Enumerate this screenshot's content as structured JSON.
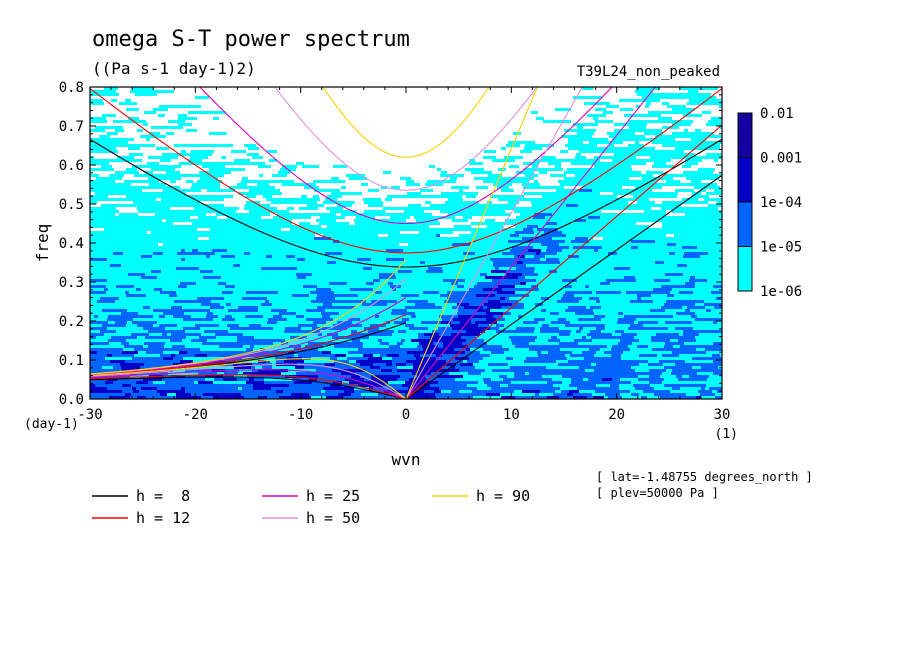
{
  "chart_data": {
    "type": "heatmap",
    "title": "omega S-T power spectrum",
    "subtitle": "((Pa s-1 day-1)2)",
    "experiment": "T39L24_non_peaked",
    "xlabel": "wvn",
    "xunit": "(1)",
    "ylabel": "freq",
    "yunit": "(day-1)",
    "xlim": [
      -30,
      30
    ],
    "ylim": [
      0,
      0.8
    ],
    "x_ticks": [
      -30,
      -20,
      -10,
      0,
      10,
      20,
      30
    ],
    "y_ticks": [
      0.0,
      0.1,
      0.2,
      0.3,
      0.4,
      0.5,
      0.6,
      0.7,
      0.8
    ],
    "x_tick_labels": [
      "-30",
      "-20",
      "-10",
      "0",
      "10",
      "20",
      "30"
    ],
    "y_tick_labels": [
      "0.0",
      "0.1",
      "0.2",
      "0.3",
      "0.4",
      "0.5",
      "0.6",
      "0.7",
      "0.8"
    ],
    "colorbar": {
      "levels": [
        "1e-06",
        "1e-05",
        "1e-04",
        "0.001",
        "0.01"
      ],
      "colors": [
        "#00ffff",
        "#0064ff",
        "#0000c8",
        "#1400a0",
        "#5000a0"
      ]
    },
    "dispersion_curves": [
      {
        "label": "h =  8",
        "color": "#000000",
        "h": 8
      },
      {
        "label": "h = 12",
        "color": "#ff0000",
        "h": 12
      },
      {
        "label": "h = 25",
        "color": "#e000c0",
        "h": 25
      },
      {
        "label": "h = 50",
        "color": "#e090e0",
        "h": 50
      },
      {
        "label": "h = 90",
        "color": "#ffd000",
        "h": 90
      }
    ],
    "annotations": [
      "[ lat=-1.48755 degrees_north ]",
      "[ plev=50000 Pa ]"
    ]
  }
}
